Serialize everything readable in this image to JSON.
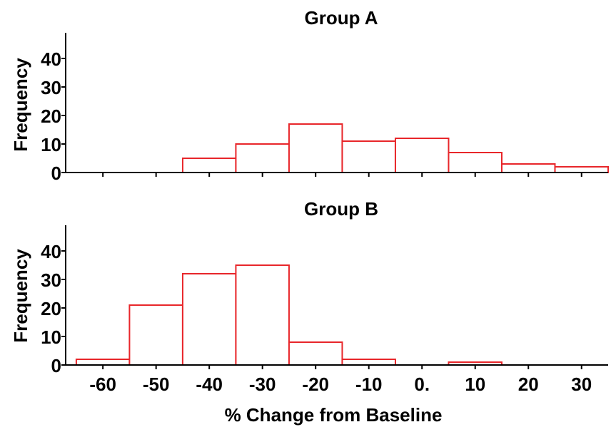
{
  "chart_data": {
    "type": "bar",
    "xlabel": "% Change from Baseline",
    "x_tick_labels": [
      "-60",
      "-50",
      "-40",
      "-30",
      "-20",
      "-10",
      "0.",
      "10",
      "20",
      "30"
    ],
    "x_tick_values": [
      -60,
      -50,
      -40,
      -30,
      -20,
      -10,
      0,
      10,
      20,
      30
    ],
    "xlim": [
      -67,
      35
    ],
    "bin_width": 10,
    "bar_color": "#e8262a",
    "panels": [
      {
        "title": "Group A",
        "ylabel": "Frequency",
        "ylim": [
          0,
          48
        ],
        "y_ticks": [
          0,
          10,
          20,
          30,
          40
        ],
        "bins": [
          {
            "center": -40,
            "count": 5
          },
          {
            "center": -30,
            "count": 10
          },
          {
            "center": -20,
            "count": 17
          },
          {
            "center": -10,
            "count": 11
          },
          {
            "center": 0,
            "count": 12
          },
          {
            "center": 10,
            "count": 7
          },
          {
            "center": 20,
            "count": 3
          },
          {
            "center": 30,
            "count": 2
          }
        ]
      },
      {
        "title": "Group B",
        "ylabel": "Frequency",
        "ylim": [
          0,
          48
        ],
        "y_ticks": [
          0,
          10,
          20,
          30,
          40
        ],
        "bins": [
          {
            "center": -60,
            "count": 2
          },
          {
            "center": -50,
            "count": 21
          },
          {
            "center": -40,
            "count": 32
          },
          {
            "center": -30,
            "count": 35
          },
          {
            "center": -20,
            "count": 8
          },
          {
            "center": -10,
            "count": 2
          },
          {
            "center": 10,
            "count": 1
          }
        ]
      }
    ]
  }
}
